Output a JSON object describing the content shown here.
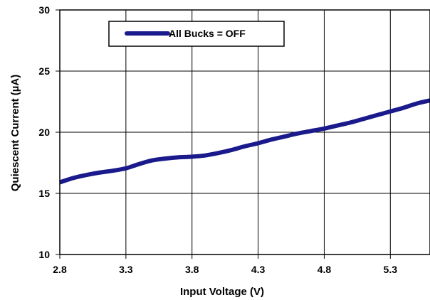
{
  "chart_data": {
    "type": "line",
    "xlabel": "Input Voltage (V)",
    "ylabel": "Quiescent Current (µA)",
    "xlim": [
      2.8,
      5.6
    ],
    "ylim": [
      10,
      30
    ],
    "x_ticks": [
      "2.8",
      "3.3",
      "3.8",
      "4.3",
      "4.8",
      "5.3"
    ],
    "y_ticks": [
      "10",
      "15",
      "20",
      "25",
      "30"
    ],
    "grid": true,
    "legend_position": "top-left",
    "series": [
      {
        "name": "All Bucks = OFF",
        "color": "#1a1a8c",
        "x": [
          2.8,
          2.9,
          3.0,
          3.1,
          3.2,
          3.3,
          3.4,
          3.5,
          3.6,
          3.7,
          3.8,
          3.9,
          4.0,
          4.1,
          4.2,
          4.3,
          4.4,
          4.5,
          4.6,
          4.7,
          4.8,
          4.9,
          5.0,
          5.1,
          5.2,
          5.3,
          5.4,
          5.5,
          5.6
        ],
        "y": [
          15.9,
          16.25,
          16.5,
          16.7,
          16.85,
          17.05,
          17.4,
          17.7,
          17.85,
          17.95,
          18.0,
          18.1,
          18.3,
          18.55,
          18.85,
          19.1,
          19.4,
          19.65,
          19.9,
          20.1,
          20.3,
          20.55,
          20.8,
          21.1,
          21.4,
          21.7,
          22.0,
          22.35,
          22.6
        ]
      }
    ]
  }
}
